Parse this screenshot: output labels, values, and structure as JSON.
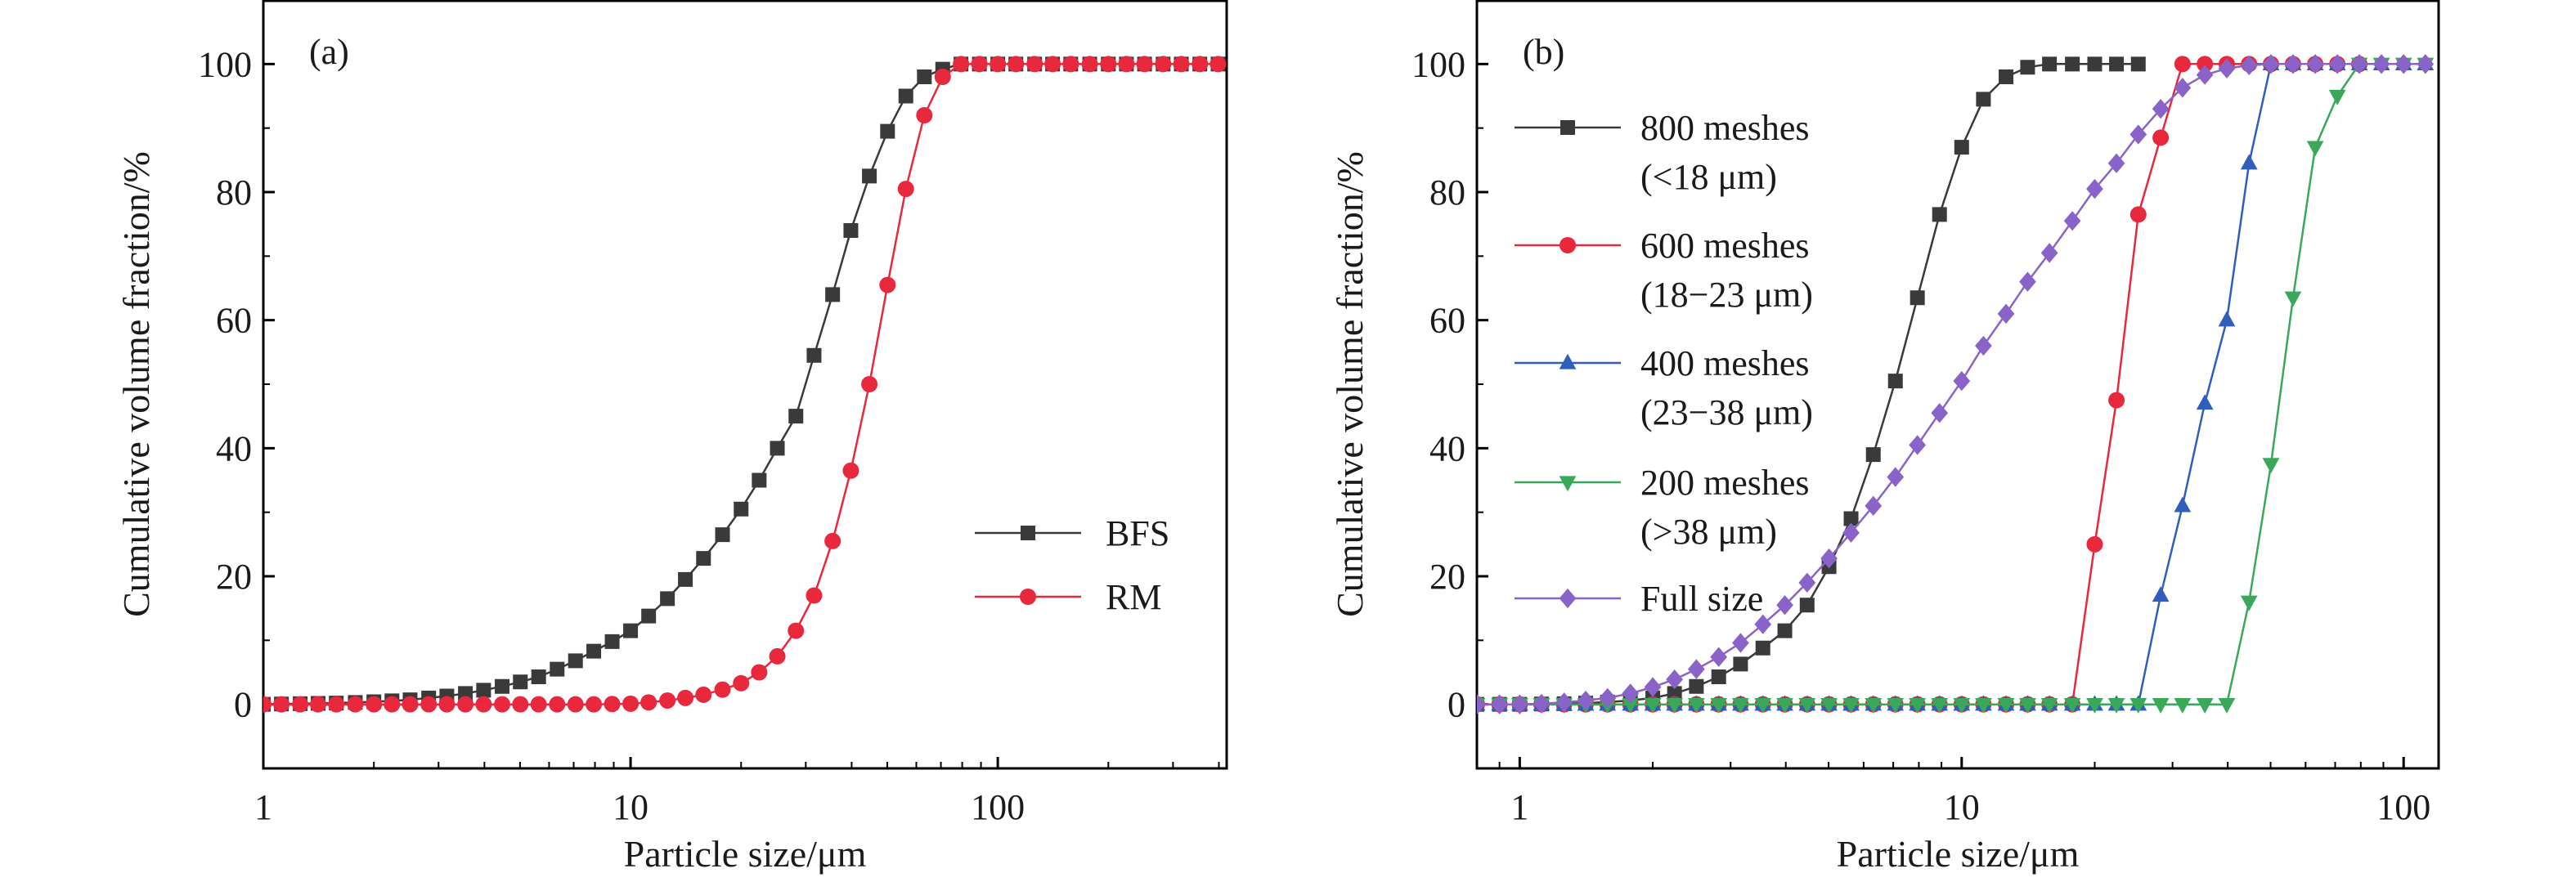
{
  "chart_data": [
    {
      "type": "line",
      "panel_label": "(a)",
      "xlabel": "Particle size/μm",
      "ylabel": "Cumulative volume fraction/%",
      "xscale": "log",
      "xlim": [
        1,
        420
      ],
      "ylim": [
        -10,
        110
      ],
      "xticks": [
        1,
        10,
        100
      ],
      "xtick_labels": [
        "1",
        "10",
        "100"
      ],
      "yticks": [
        0,
        20,
        40,
        60,
        80,
        100
      ],
      "ytick_labels": [
        "0",
        "20",
        "40",
        "60",
        "80",
        "100"
      ],
      "grid": false,
      "legend_position": "center-right",
      "series": [
        {
          "name": "BFS",
          "color": "#3a3a3a",
          "marker": "square",
          "x": [
            1.0,
            1.12,
            1.26,
            1.41,
            1.58,
            1.78,
            2.0,
            2.24,
            2.51,
            2.82,
            3.16,
            3.55,
            3.98,
            4.47,
            5.01,
            5.62,
            6.31,
            7.08,
            7.94,
            8.91,
            10.0,
            11.2,
            12.6,
            14.1,
            15.8,
            17.8,
            20.0,
            22.4,
            25.1,
            28.2,
            31.6,
            35.5,
            39.8,
            44.7,
            50.1,
            56.2,
            63.1,
            70.8,
            79.4,
            89.1,
            100,
            112,
            126,
            141,
            158,
            178,
            200,
            224,
            251,
            282,
            316,
            355,
            398
          ],
          "y": [
            0.0,
            0.05,
            0.1,
            0.15,
            0.2,
            0.3,
            0.4,
            0.55,
            0.7,
            1.0,
            1.3,
            1.7,
            2.2,
            2.8,
            3.5,
            4.3,
            5.5,
            6.8,
            8.3,
            9.8,
            11.5,
            13.8,
            16.5,
            19.5,
            22.8,
            26.5,
            30.5,
            35,
            40,
            45,
            54.5,
            64,
            74,
            82.5,
            89.5,
            95,
            98,
            99.2,
            100,
            100,
            100,
            100,
            100,
            100,
            100,
            100,
            100,
            100,
            100,
            100,
            100,
            100,
            100
          ]
        },
        {
          "name": "RM",
          "color": "#e8283c",
          "marker": "circle",
          "x": [
            1.0,
            1.12,
            1.26,
            1.41,
            1.58,
            1.78,
            2.0,
            2.24,
            2.51,
            2.82,
            3.16,
            3.55,
            3.98,
            4.47,
            5.01,
            5.62,
            6.31,
            7.08,
            7.94,
            8.91,
            10.0,
            11.2,
            12.6,
            14.1,
            15.8,
            17.8,
            20.0,
            22.4,
            25.1,
            28.2,
            31.6,
            35.5,
            39.8,
            44.7,
            50.1,
            56.2,
            63.1,
            70.8,
            79.4,
            89.1,
            100,
            112,
            126,
            141,
            158,
            178,
            200,
            224,
            251,
            282,
            316,
            355,
            398
          ],
          "y": [
            0,
            0,
            0,
            0,
            0,
            0,
            0,
            0,
            0,
            0,
            0,
            0,
            0,
            0,
            0,
            0,
            0,
            0,
            0,
            0.05,
            0.1,
            0.3,
            0.6,
            1.0,
            1.5,
            2.3,
            3.3,
            5,
            7.5,
            11.5,
            17,
            25.5,
            36.5,
            50,
            65.5,
            80.5,
            92,
            98,
            100,
            100,
            100,
            100,
            100,
            100,
            100,
            100,
            100,
            100,
            100,
            100,
            100,
            100,
            100
          ]
        }
      ]
    },
    {
      "type": "line",
      "panel_label": "(b)",
      "xlabel": "Particle size/μm",
      "ylabel": "Cumulative volume fraction/%",
      "xscale": "log",
      "xlim": [
        0.8,
        120
      ],
      "ylim": [
        -10,
        110
      ],
      "xticks": [
        1,
        10,
        100
      ],
      "xtick_labels": [
        "1",
        "10",
        "100"
      ],
      "yticks": [
        0,
        20,
        40,
        60,
        80,
        100
      ],
      "ytick_labels": [
        "0",
        "20",
        "40",
        "60",
        "80",
        "100"
      ],
      "grid": false,
      "legend_position": "upper-left",
      "series": [
        {
          "name": "800 meshes\n(<18 μm)",
          "legend_lines": [
            "800 meshes",
            "(<18 μm)"
          ],
          "color": "#3a3a3a",
          "marker": "square",
          "x": [
            0.8,
            0.9,
            1.0,
            1.12,
            1.26,
            1.41,
            1.58,
            1.78,
            2.0,
            2.24,
            2.51,
            2.82,
            3.16,
            3.55,
            3.98,
            4.47,
            5.01,
            5.62,
            6.31,
            7.08,
            7.94,
            8.91,
            10.0,
            11.2,
            12.6,
            14.1,
            15.8,
            17.8,
            20.0,
            22.4,
            25.1
          ],
          "y": [
            0,
            0,
            0,
            0.05,
            0.1,
            0.2,
            0.35,
            0.6,
            1.0,
            1.7,
            2.8,
            4.3,
            6.3,
            8.8,
            11.5,
            15.5,
            21.5,
            29,
            39,
            50.5,
            63.5,
            76.5,
            87,
            94.5,
            98,
            99.5,
            100,
            100,
            100,
            100,
            100
          ]
        },
        {
          "name": "600 meshes\n(18−23 μm)",
          "legend_lines": [
            "600 meshes",
            "(18−23 μm)"
          ],
          "color": "#e8283c",
          "marker": "circle",
          "x": [
            0.8,
            0.9,
            1.0,
            1.12,
            1.26,
            1.41,
            1.58,
            1.78,
            2.0,
            2.24,
            2.51,
            2.82,
            3.16,
            3.55,
            3.98,
            4.47,
            5.01,
            5.62,
            6.31,
            7.08,
            7.94,
            8.91,
            10.0,
            11.2,
            12.6,
            14.1,
            15.8,
            17.8,
            20.0,
            22.4,
            25.1,
            28.2,
            31.6,
            35.5,
            39.8,
            44.7,
            50.1,
            56.2,
            63.1,
            70.8,
            79.4
          ],
          "y": [
            0,
            0,
            0,
            0,
            0,
            0,
            0,
            0,
            0,
            0,
            0,
            0,
            0,
            0,
            0,
            0,
            0,
            0,
            0,
            0,
            0,
            0,
            0,
            0,
            0,
            0,
            0,
            0,
            25,
            47.5,
            76.5,
            88.5,
            100,
            100,
            100,
            100,
            100,
            100,
            100,
            100,
            100
          ]
        },
        {
          "name": "400 meshes\n(23−38 μm)",
          "legend_lines": [
            "400 meshes",
            "(23−38 μm)"
          ],
          "color": "#2f5fba",
          "marker": "triangle-up",
          "x": [
            0.8,
            0.9,
            1.0,
            1.12,
            1.26,
            1.41,
            1.58,
            1.78,
            2.0,
            2.24,
            2.51,
            2.82,
            3.16,
            3.55,
            3.98,
            4.47,
            5.01,
            5.62,
            6.31,
            7.08,
            7.94,
            8.91,
            10.0,
            11.2,
            12.6,
            14.1,
            15.8,
            17.8,
            20.0,
            22.4,
            25.1,
            28.2,
            31.6,
            35.5,
            39.8,
            44.7,
            50.1,
            56.2,
            63.1,
            70.8,
            79.4,
            89.1,
            100,
            112
          ],
          "y": [
            0,
            0,
            0,
            0,
            0,
            0,
            0,
            0,
            0,
            0,
            0,
            0,
            0,
            0,
            0,
            0,
            0,
            0,
            0,
            0,
            0,
            0,
            0,
            0,
            0,
            0,
            0,
            0,
            0,
            0,
            0,
            17,
            31,
            47,
            60,
            84.5,
            100,
            100,
            100,
            100,
            100,
            100,
            100,
            100
          ]
        },
        {
          "name": "200 meshes\n(>38 μm)",
          "legend_lines": [
            "200 meshes",
            "(>38 μm)"
          ],
          "color": "#3aa85a",
          "marker": "triangle-down",
          "x": [
            0.8,
            0.9,
            1.0,
            1.12,
            1.26,
            1.41,
            1.58,
            1.78,
            2.0,
            2.24,
            2.51,
            2.82,
            3.16,
            3.55,
            3.98,
            4.47,
            5.01,
            5.62,
            6.31,
            7.08,
            7.94,
            8.91,
            10.0,
            11.2,
            12.6,
            14.1,
            15.8,
            17.8,
            20.0,
            22.4,
            25.1,
            28.2,
            31.6,
            35.5,
            39.8,
            44.7,
            50.1,
            56.2,
            63.1,
            70.8,
            79.4,
            89.1,
            100,
            112
          ],
          "y": [
            0,
            0,
            0,
            0,
            0,
            0,
            0,
            0,
            0,
            0,
            0,
            0,
            0,
            0,
            0,
            0,
            0,
            0,
            0,
            0,
            0,
            0,
            0,
            0,
            0,
            0,
            0,
            0,
            0,
            0,
            0,
            0,
            0,
            0,
            0,
            16,
            37.5,
            63.5,
            87,
            95,
            100,
            100,
            100,
            100
          ]
        },
        {
          "name": "Full size",
          "legend_lines": [
            "Full size"
          ],
          "color": "#8a63c8",
          "marker": "diamond",
          "x": [
            0.8,
            0.9,
            1.0,
            1.12,
            1.26,
            1.41,
            1.58,
            1.78,
            2.0,
            2.24,
            2.51,
            2.82,
            3.16,
            3.55,
            3.98,
            4.47,
            5.01,
            5.62,
            6.31,
            7.08,
            7.94,
            8.91,
            10.0,
            11.2,
            12.6,
            14.1,
            15.8,
            17.8,
            20.0,
            22.4,
            25.1,
            28.2,
            31.6,
            35.5,
            39.8,
            44.7,
            50.1,
            56.2,
            63.1,
            70.8,
            79.4,
            89.1,
            100,
            112
          ],
          "y": [
            0,
            0,
            0,
            0.1,
            0.3,
            0.6,
            1.0,
            1.7,
            2.7,
            3.9,
            5.5,
            7.4,
            9.6,
            12.5,
            15.5,
            19,
            22.8,
            26.8,
            31,
            35.5,
            40.5,
            45.5,
            50.5,
            56,
            61,
            66,
            70.5,
            75.5,
            80.5,
            84.5,
            89,
            93,
            96.3,
            98.3,
            99.3,
            99.8,
            100,
            100,
            100,
            100,
            100,
            100,
            100,
            100
          ]
        }
      ]
    }
  ]
}
